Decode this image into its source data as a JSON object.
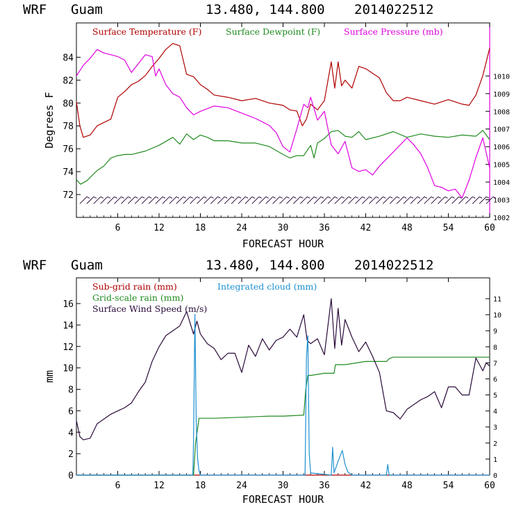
{
  "chart_data": [
    {
      "type": "line",
      "model": "WRF",
      "location": "Guam",
      "coords": "13.480, 144.800",
      "init": "2014022512",
      "xlabel": "FORECAST HOUR",
      "ylabel": "Degrees F",
      "xlim": [
        0,
        60
      ],
      "ylim": [
        70,
        87
      ],
      "y2lim": [
        1002,
        1013
      ],
      "xticks": [
        "6",
        "12",
        "18",
        "24",
        "30",
        "36",
        "42",
        "48",
        "54",
        "60"
      ],
      "yticks": [
        "72",
        "74",
        "76",
        "78",
        "80",
        "82",
        "84"
      ],
      "y2ticks": [
        "1002",
        "1003",
        "1004",
        "1005",
        "1006",
        "1007",
        "1008",
        "1009",
        "1010"
      ],
      "colors": {
        "temp": "#b00000",
        "dew": "#1f8a1f",
        "pres": "#e000e0",
        "wind": "#2a0a3a"
      },
      "series": [
        {
          "name": "Surface Temperature (F)",
          "axis": "left",
          "x": [
            0,
            0.5,
            1,
            2,
            3,
            4,
            5,
            6,
            7,
            8,
            9,
            10,
            11,
            12,
            13,
            14,
            15,
            16,
            17,
            18,
            19,
            20,
            22,
            24,
            26,
            28,
            30,
            31,
            32,
            32.8,
            33.4,
            34,
            35,
            36,
            37,
            37.5,
            38,
            38.5,
            39,
            40,
            41,
            42,
            43,
            44,
            45,
            46,
            47,
            48,
            50,
            52,
            54,
            56,
            57,
            58,
            59,
            60
          ],
          "values": [
            80.1,
            78,
            77,
            77.2,
            78,
            78.3,
            78.6,
            80.5,
            81,
            81.6,
            81.9,
            82.4,
            83.2,
            83.9,
            84.7,
            85.2,
            85,
            82.5,
            82.3,
            81.6,
            81.2,
            80.7,
            80.5,
            80.2,
            80.4,
            80,
            79.8,
            79.4,
            79.3,
            78,
            78.6,
            79.9,
            79.4,
            80.2,
            83.6,
            81.3,
            83.6,
            81.5,
            82,
            81.3,
            83.2,
            83,
            82.6,
            82.2,
            80.9,
            80.2,
            80.2,
            80.5,
            80.2,
            79.9,
            80.3,
            79.9,
            79.8,
            80.7,
            82.4,
            84.8
          ]
        },
        {
          "name": "Surface Dewpoint (F)",
          "axis": "left",
          "x": [
            0,
            0.6,
            1.5,
            3,
            4,
            5,
            6,
            7,
            8,
            10,
            12,
            14,
            15,
            16,
            17,
            18,
            19,
            20,
            22,
            24,
            26,
            28,
            30,
            31,
            32,
            33,
            34,
            34.5,
            35,
            36,
            37,
            38,
            39,
            40,
            41,
            42,
            44,
            46,
            48,
            50,
            52,
            54,
            56,
            58,
            59,
            60
          ],
          "values": [
            73.3,
            72.9,
            73.2,
            74.1,
            74.5,
            75.2,
            75.4,
            75.5,
            75.5,
            75.8,
            76.3,
            77,
            76.4,
            77.3,
            76.8,
            77.2,
            77,
            76.7,
            76.7,
            76.5,
            76.5,
            76.2,
            75.5,
            75.2,
            75.4,
            75.4,
            76.3,
            75.2,
            76.5,
            76.9,
            77.5,
            77.6,
            77.1,
            77,
            77.5,
            76.8,
            77.1,
            77.5,
            77,
            77.3,
            77.1,
            77,
            77.2,
            77.1,
            77.6,
            76.8
          ]
        },
        {
          "name": "Surface Pressure (mb)",
          "axis": "right",
          "x": [
            0,
            0.5,
            1,
            2,
            3,
            4,
            5,
            6,
            7,
            8,
            9,
            10,
            11,
            11.5,
            12,
            13,
            14,
            15,
            16,
            17,
            18,
            20,
            22,
            24,
            26,
            28,
            29,
            30,
            31,
            32,
            33,
            33.6,
            34,
            35,
            36,
            37,
            38,
            39,
            40,
            41,
            42,
            43,
            44,
            46,
            48,
            49,
            50,
            51,
            52,
            53,
            54,
            55,
            56,
            57,
            58,
            59,
            60
          ],
          "values": [
            1010,
            1010.3,
            1010.6,
            1011,
            1011.5,
            1011.3,
            1011.2,
            1011.1,
            1010.9,
            1010.2,
            1010.7,
            1011.2,
            1011.1,
            1010,
            1010.4,
            1009.5,
            1009,
            1008.8,
            1008.2,
            1007.8,
            1008,
            1008.3,
            1008.2,
            1007.9,
            1007.6,
            1007.2,
            1006.8,
            1006,
            1005.7,
            1007,
            1008.4,
            1008.2,
            1008.8,
            1007.5,
            1008,
            1006.1,
            1005.6,
            1006.3,
            1004.8,
            1004.6,
            1004.7,
            1004.4,
            1004.9,
            1005.7,
            1006.5,
            1006.1,
            1005.6,
            1004.8,
            1003.8,
            1003.7,
            1003.5,
            1003.6,
            1003.1,
            1004.1,
            1005.4,
            1006.5,
            1004.8
          ]
        }
      ],
      "wind_barbs": true
    },
    {
      "type": "line",
      "model": "WRF",
      "location": "Guam",
      "coords": "13.480, 144.800",
      "init": "2014022512",
      "xlabel": "FORECAST HOUR",
      "ylabel": "mm",
      "xlim": [
        0,
        60
      ],
      "ylim": [
        0,
        18.4
      ],
      "y2lim": [
        0,
        12.3
      ],
      "xticks": [
        "6",
        "12",
        "18",
        "24",
        "30",
        "36",
        "42",
        "48",
        "54",
        "60"
      ],
      "yticks": [
        "0",
        "2",
        "4",
        "6",
        "8",
        "10",
        "12",
        "14",
        "16"
      ],
      "y2ticks": [
        "0",
        "1",
        "2",
        "3",
        "4",
        "5",
        "6",
        "7",
        "8",
        "9",
        "10",
        "11"
      ],
      "colors": {
        "subgrid": "#b00000",
        "grid": "#1f8a1f",
        "cloud": "#1e90d0",
        "wind": "#2a0a3a"
      },
      "series": [
        {
          "name": "Sub-grid rain (mm)",
          "axis": "left",
          "x": [
            0,
            60
          ],
          "values": [
            0,
            0
          ]
        },
        {
          "name": "Grid-scale rain (mm)",
          "axis": "left",
          "x": [
            0,
            17,
            17.3,
            17.8,
            18,
            20,
            24,
            28,
            30,
            33,
            33.3,
            33.6,
            34,
            36,
            37.4,
            37.6,
            39,
            40,
            41,
            42,
            44,
            45,
            45.5,
            46,
            48,
            50,
            55,
            60
          ],
          "values": [
            0,
            0,
            3,
            5.3,
            5.3,
            5.3,
            5.4,
            5.5,
            5.5,
            5.6,
            8,
            9.3,
            9.3,
            9.5,
            9.5,
            10.3,
            10.3,
            10.4,
            10.5,
            10.6,
            10.6,
            10.6,
            10.9,
            11,
            11,
            11,
            11,
            11
          ]
        },
        {
          "name": "Surface Wind Speed (m/s)",
          "axis": "right",
          "x": [
            0,
            0.5,
            1,
            2,
            3,
            4,
            5,
            6,
            7,
            8,
            9,
            10,
            11,
            12,
            13,
            14,
            15,
            16,
            16.5,
            17,
            17.5,
            18,
            19,
            20,
            21,
            22,
            23,
            24,
            25,
            26,
            27,
            28,
            29,
            30,
            31,
            32,
            33,
            33.5,
            34,
            35,
            36,
            37,
            37.5,
            38,
            38.5,
            39,
            40,
            41,
            42,
            43,
            44,
            44.5,
            45,
            46,
            47,
            48,
            49,
            50,
            51,
            52,
            53,
            54,
            55,
            56,
            57,
            58,
            59,
            59.5,
            60
          ],
          "values": [
            3.4,
            2.4,
            2.2,
            2.3,
            3.2,
            3.5,
            3.8,
            4,
            4.2,
            4.5,
            5.2,
            5.8,
            7.1,
            8,
            8.7,
            9,
            9.3,
            10.2,
            9.5,
            8.8,
            9.6,
            8.8,
            8.2,
            7.9,
            7.2,
            7.6,
            7.6,
            6.4,
            8.1,
            7.4,
            8.5,
            7.8,
            8.4,
            8.6,
            9.1,
            8.6,
            10,
            8.4,
            8.2,
            8.5,
            7.5,
            11,
            7.9,
            10.4,
            8.1,
            9.7,
            8.6,
            7.7,
            8.3,
            7.4,
            6.4,
            5.2,
            4,
            3.9,
            3.5,
            4.1,
            4.4,
            4.7,
            4.9,
            5.2,
            4.2,
            5.5,
            5.5,
            5,
            5,
            7.3,
            6.5,
            7,
            6.8
          ]
        },
        {
          "name": "Integrated cloud (mm)",
          "axis": "left",
          "x": [
            0,
            16.9,
            17,
            17.2,
            17.4,
            17.6,
            17.8,
            18,
            33.2,
            33.4,
            33.6,
            33.8,
            34,
            37,
            37.2,
            37.4,
            38,
            38.6,
            39,
            39.4,
            40,
            45,
            45.2,
            45.4,
            60
          ],
          "values": [
            0,
            0,
            3,
            15,
            5,
            1.5,
            0.4,
            0,
            0,
            11,
            13,
            2,
            0.2,
            0,
            2.6,
            0.2,
            1.3,
            2.3,
            1,
            0.3,
            0,
            0,
            1,
            0,
            0
          ]
        }
      ]
    }
  ]
}
